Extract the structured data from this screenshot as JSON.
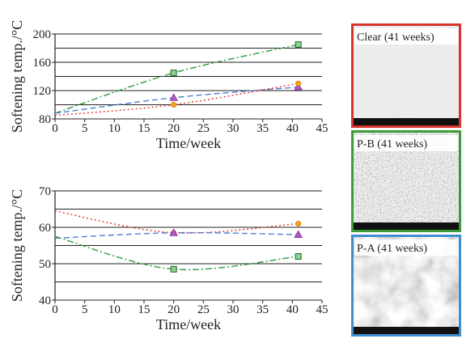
{
  "chart_data": [
    {
      "type": "line",
      "x_label": "Time/week",
      "y_label": "Softening temp./°C",
      "xlim": [
        0,
        45
      ],
      "xticks": [
        0,
        5,
        10,
        15,
        20,
        25,
        30,
        35,
        40,
        45
      ],
      "ylim": [
        80,
        200
      ],
      "yticks": [
        80,
        120,
        160,
        200
      ],
      "ygrid": [
        80,
        100,
        120,
        140,
        160,
        180,
        200
      ],
      "x": [
        0,
        20,
        41
      ],
      "series": [
        {
          "color": "#2e9a3e",
          "marker": "square",
          "dash": "8 3 2 3",
          "values": [
            88,
            145,
            185
          ]
        },
        {
          "color": "#4a7fd4",
          "marker": "triangle",
          "dash": "7 4",
          "values": [
            88,
            110,
            125
          ]
        },
        {
          "color": "#e2322a",
          "marker": "circle",
          "dash": "2 3",
          "values": [
            85,
            100,
            130
          ]
        }
      ]
    },
    {
      "type": "line",
      "x_label": "Time/week",
      "y_label": "Softening temp./°C",
      "xlim": [
        0,
        45
      ],
      "xticks": [
        0,
        5,
        10,
        15,
        20,
        25,
        30,
        35,
        40,
        45
      ],
      "ylim": [
        40,
        70
      ],
      "yticks": [
        40,
        50,
        60,
        70
      ],
      "ygrid": [
        40,
        45,
        50,
        55,
        60,
        65,
        70
      ],
      "x": [
        0,
        20,
        41
      ],
      "series": [
        {
          "color": "#e2322a",
          "marker": "circle",
          "dash": "2 3",
          "values": [
            64.5,
            58.5,
            61
          ]
        },
        {
          "color": "#4a7fd4",
          "marker": "triangle",
          "dash": "7 4",
          "values": [
            57,
            58.5,
            58
          ]
        },
        {
          "color": "#2e9a3e",
          "marker": "square",
          "dash": "8 3 2 3",
          "values": [
            57.5,
            48.5,
            52
          ]
        }
      ]
    }
  ],
  "images": [
    {
      "label": "Clear (41 weeks)",
      "color": "#d9342b"
    },
    {
      "label": "P-B (41 weeks)",
      "color": "#3f9a3a"
    },
    {
      "label": "P-A (41 weeks)",
      "color": "#3e8fd0"
    }
  ]
}
